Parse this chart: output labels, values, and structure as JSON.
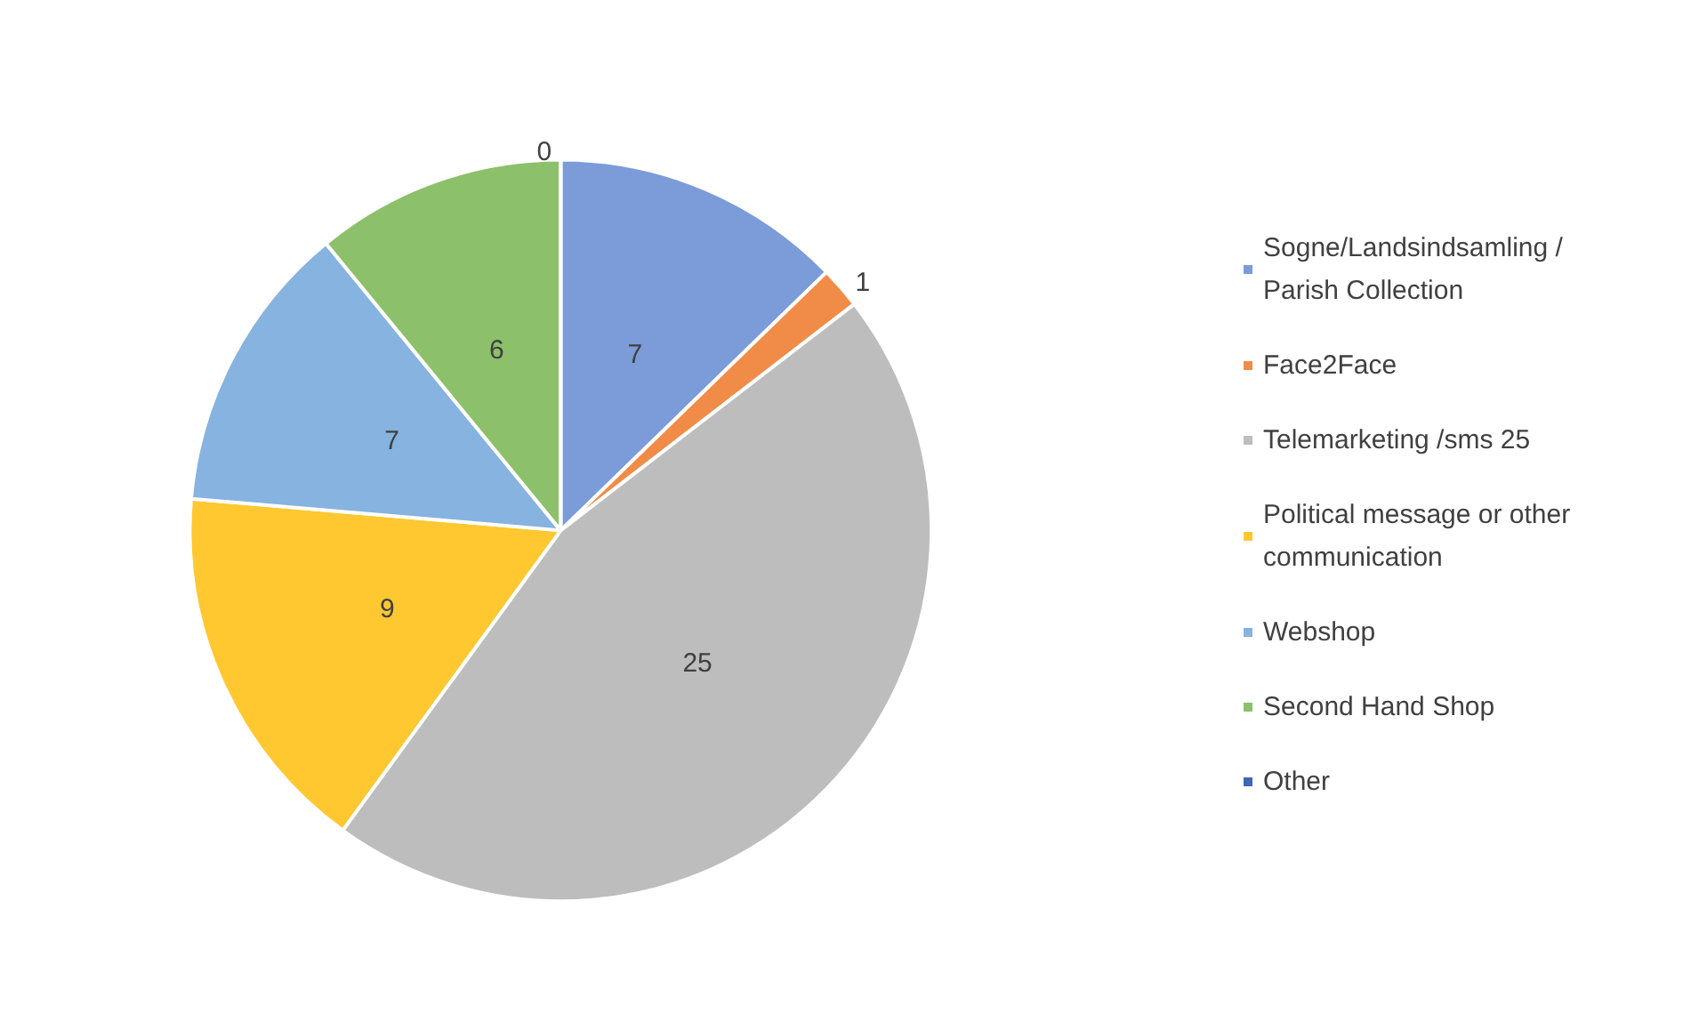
{
  "chart_data": {
    "type": "pie",
    "categories": [
      "Sogne/Landsindsamling /Parish Collection",
      "Face2Face",
      "Telemarketing /sms 25",
      "Political message or other communication",
      "Webshop",
      "Second Hand Shop",
      "Other"
    ],
    "values": [
      7,
      1,
      25,
      9,
      7,
      6,
      0
    ],
    "colors": [
      "#7b9bd9",
      "#f08c48",
      "#bdbdbd",
      "#ffc830",
      "#86b3e0",
      "#8cc06a",
      "#3f67b4"
    ],
    "value_labels": [
      "7",
      "1",
      "25",
      "9",
      "7",
      "6",
      "0"
    ],
    "legend": "right"
  }
}
